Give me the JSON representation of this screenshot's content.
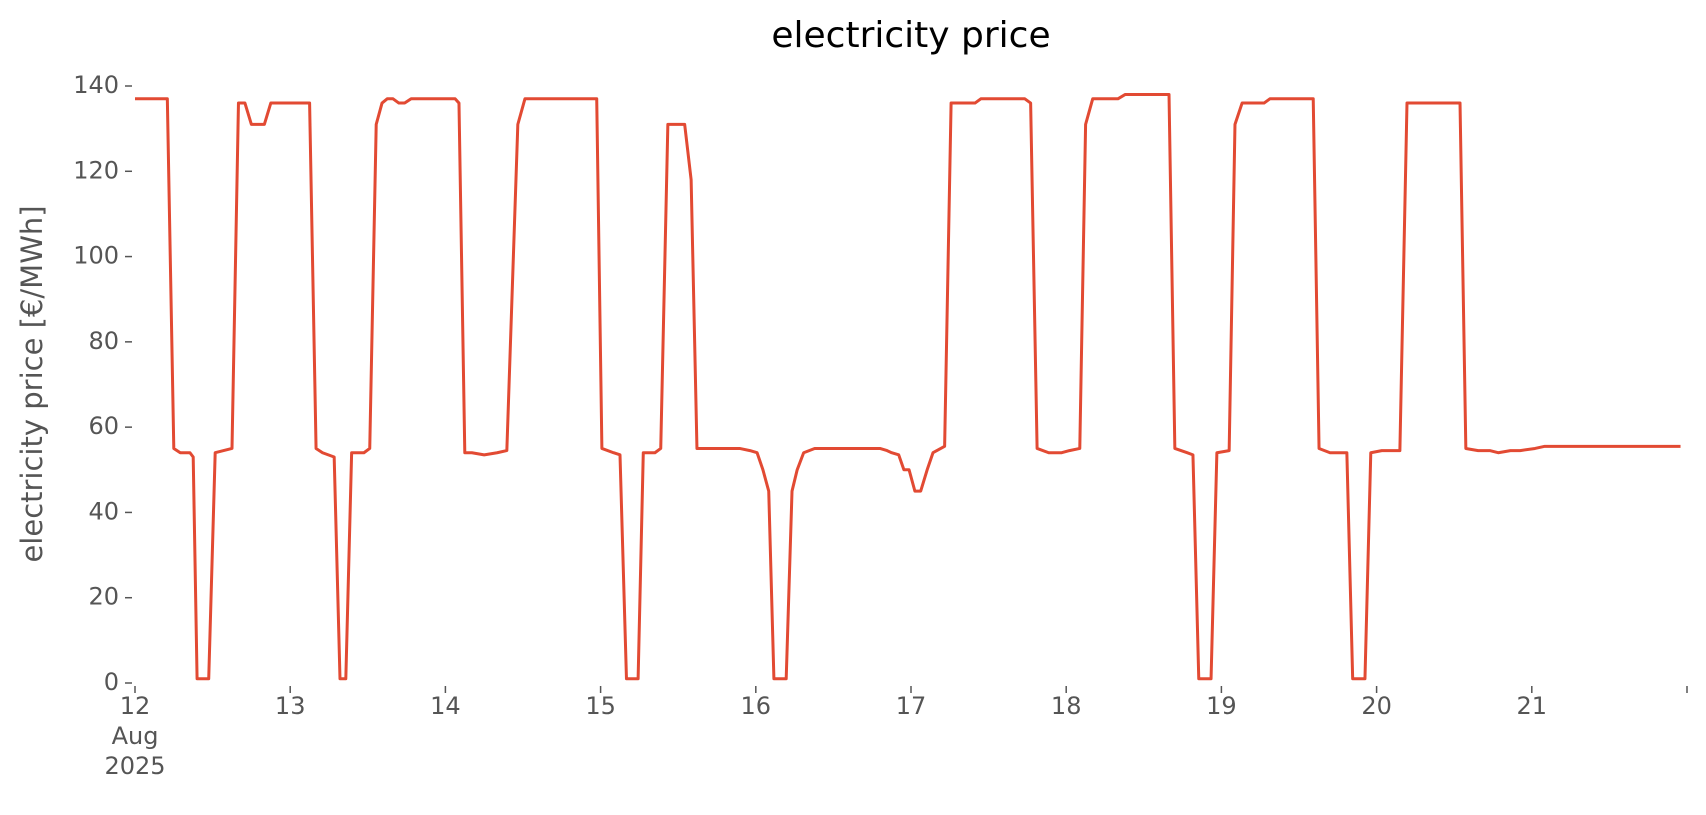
{
  "chart_data": {
    "type": "line",
    "title": "electricity price",
    "ylabel": "electricity price [€/MWh]",
    "x": [
      0,
      5,
      6,
      7,
      8.5,
      9,
      9.6,
      11.4,
      12.4,
      15,
      16,
      17,
      18,
      20,
      21,
      27,
      28,
      29,
      30.8,
      31.7,
      32.6,
      33.5,
      35.4,
      36.3,
      37.3,
      38.2,
      39,
      39.9,
      40.8,
      41.7,
      42.7,
      49.5,
      50.1,
      51,
      52.1,
      54,
      56,
      57.5,
      59.2,
      60.3,
      71.4,
      72.2,
      74,
      75,
      76,
      77.8,
      78.6,
      80.4,
      81.3,
      82.4,
      85,
      86,
      86.9,
      93.5,
      95.1,
      96.2,
      97.1,
      98,
      98.8,
      100.7,
      101.6,
      102.4,
      103.4,
      105.1,
      115.2,
      116.3,
      117,
      118.1,
      118.9,
      119.7,
      120.6,
      121.5,
      122.5,
      123.4,
      125.2,
      126.2,
      129.9,
      130.8,
      137.6,
      138.5,
      139.5,
      141.3,
      143.3,
      144.5,
      146.1,
      147,
      148.1,
      152,
      153.1,
      159.9,
      160.8,
      162.7,
      163.6,
      164.5,
      166.4,
      167.3,
      169.2,
      170.1,
      171.2,
      174.6,
      175.5,
      182.2,
      183.1,
      184.8,
      187.4,
      188.3,
      190.2,
      191.1,
      192.8,
      194.4,
      195.6,
      196.7,
      204.9,
      205.8,
      207.7,
      209.5,
      210.8,
      212.7,
      214.2,
      216.5,
      218,
      239
    ],
    "values": [
      137,
      137,
      55,
      54,
      54,
      53,
      1,
      1,
      54,
      55,
      136,
      136,
      131,
      131,
      136,
      136,
      55,
      54,
      53,
      1,
      1,
      54,
      54,
      55,
      131,
      136,
      137,
      137,
      136,
      136,
      137,
      137,
      136,
      54,
      54,
      53.5,
      54,
      54.5,
      131,
      137,
      137,
      55,
      54,
      53.5,
      1,
      1,
      54,
      54,
      55,
      131,
      131,
      118,
      55,
      55,
      54.5,
      54,
      50,
      45,
      1,
      1,
      45,
      50,
      54,
      55,
      55,
      54.5,
      54,
      53.5,
      50,
      50,
      45,
      45,
      50,
      54,
      55.5,
      136,
      136,
      137,
      137,
      136,
      55,
      54,
      54,
      54.5,
      55,
      131,
      137,
      137,
      138,
      138,
      55,
      54,
      53.5,
      1,
      1,
      54,
      54.5,
      131,
      136,
      136,
      137,
      137,
      55,
      54,
      54,
      1,
      1,
      54,
      54.5,
      54.5,
      54.5,
      136,
      136,
      55,
      54.5,
      54.5,
      54,
      54.5,
      54.5,
      55,
      55.5,
      55.5
    ],
    "color": "#e24a33",
    "xlim": [
      0,
      240
    ],
    "xticks": [
      {
        "value": 0,
        "label": "12\nAug\n2025"
      },
      {
        "value": 24,
        "label": "13"
      },
      {
        "value": 48,
        "label": "14"
      },
      {
        "value": 72,
        "label": "15"
      },
      {
        "value": 96,
        "label": "16"
      },
      {
        "value": 120,
        "label": "17"
      },
      {
        "value": 144,
        "label": "18"
      },
      {
        "value": 168,
        "label": "19"
      },
      {
        "value": 192,
        "label": "20"
      },
      {
        "value": 216,
        "label": "21"
      },
      {
        "value": 240,
        "label": null
      }
    ],
    "ylim": [
      0,
      140
    ],
    "yticks": [
      0,
      20,
      40,
      60,
      80,
      100,
      120,
      140
    ],
    "grid": false
  }
}
